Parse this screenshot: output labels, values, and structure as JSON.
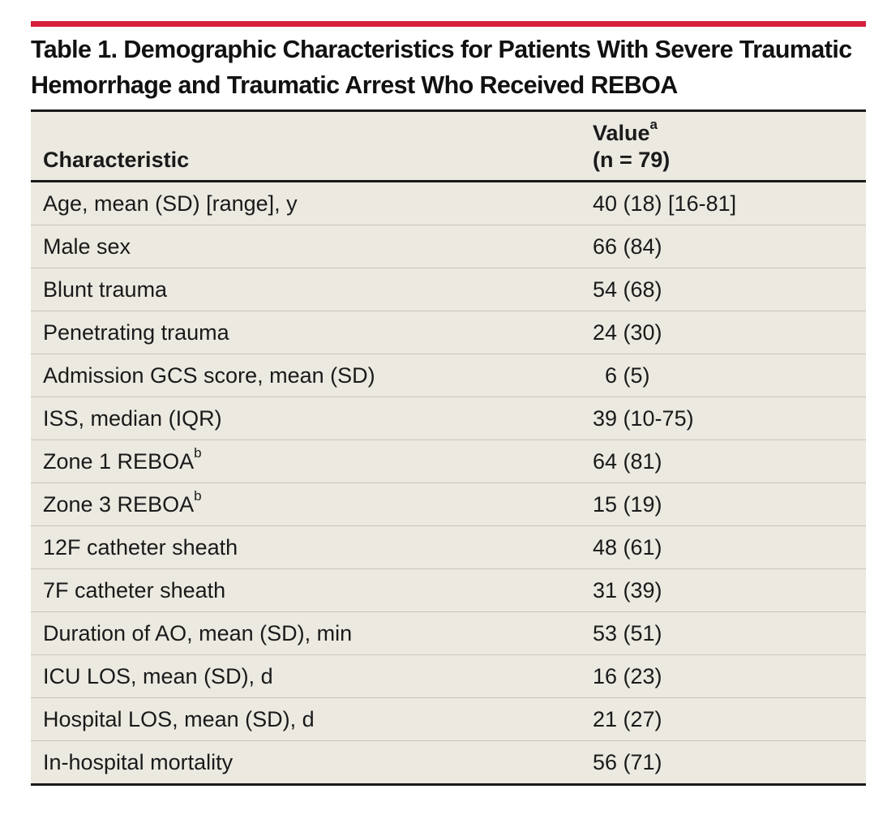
{
  "table": {
    "title_line1": "Table 1. Demographic Characteristics for Patients With Severe Traumatic",
    "title_line2": "Hemorrhage and Traumatic Arrest Who Received REBOA",
    "header": {
      "characteristic": "Characteristic",
      "value_label": "Value",
      "value_footnote": "a",
      "value_n": "(n = 79)"
    },
    "rows": [
      {
        "label": "Age, mean (SD) [range], y",
        "sup": "",
        "value": "40 (18) [16-81]"
      },
      {
        "label": "Male sex",
        "sup": "",
        "value": "66 (84)"
      },
      {
        "label": "Blunt trauma",
        "sup": "",
        "value": "54 (68)"
      },
      {
        "label": "Penetrating trauma",
        "sup": "",
        "value": "24 (30)"
      },
      {
        "label": "Admission GCS score, mean (SD)",
        "sup": "",
        "value": "  6 (5)"
      },
      {
        "label": "ISS, median (IQR)",
        "sup": "",
        "value": "39 (10-75)"
      },
      {
        "label": "Zone 1 REBOA",
        "sup": "b",
        "value": "64 (81)"
      },
      {
        "label": "Zone 3 REBOA",
        "sup": "b",
        "value": "15 (19)"
      },
      {
        "label": "12F catheter sheath",
        "sup": "",
        "value": "48 (61)"
      },
      {
        "label": "7F catheter sheath",
        "sup": "",
        "value": "31 (39)"
      },
      {
        "label": "Duration of AO, mean (SD), min",
        "sup": "",
        "value": "53 (51)"
      },
      {
        "label": "ICU LOS, mean (SD), d",
        "sup": "",
        "value": "16 (23)"
      },
      {
        "label": "Hospital LOS, mean (SD), d",
        "sup": "",
        "value": "21 (27)"
      },
      {
        "label": "In-hospital mortality",
        "sup": "",
        "value": "56 (71)"
      }
    ]
  },
  "colors": {
    "accent_bar": "#d51f3c",
    "table_background": "#ece9e1",
    "rule": "#1a1a1a",
    "row_divider": "#c9c5bb"
  }
}
